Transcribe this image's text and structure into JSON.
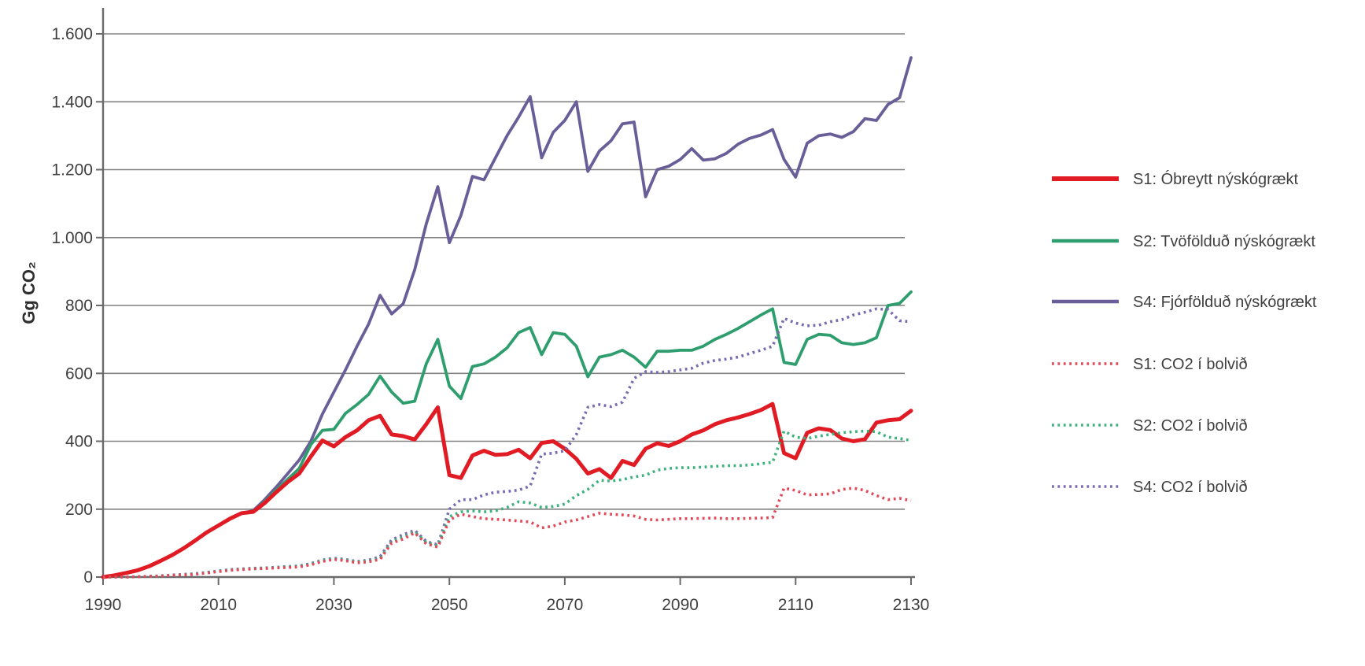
{
  "chart_data": {
    "type": "line",
    "title": "",
    "xlabel": "",
    "ylabel": "Gg CO₂",
    "ylim": [
      0,
      1600
    ],
    "xlim": [
      1990,
      2130
    ],
    "grid": "horizontal",
    "legend_position": "right",
    "yticks": [
      {
        "value": 0,
        "label": "0"
      },
      {
        "value": 200,
        "label": "200"
      },
      {
        "value": 400,
        "label": "400"
      },
      {
        "value": 600,
        "label": "600"
      },
      {
        "value": 800,
        "label": "800"
      },
      {
        "value": 1000,
        "label": "1.000"
      },
      {
        "value": 1200,
        "label": "1.200"
      },
      {
        "value": 1400,
        "label": "1.400"
      },
      {
        "value": 1600,
        "label": "1.600"
      }
    ],
    "xticks": [
      {
        "value": 1990,
        "label": "1990"
      },
      {
        "value": 2010,
        "label": "2010"
      },
      {
        "value": 2030,
        "label": "2030"
      },
      {
        "value": 2050,
        "label": "2050"
      },
      {
        "value": 2070,
        "label": "2070"
      },
      {
        "value": 2090,
        "label": "2090"
      },
      {
        "value": 2110,
        "label": "2110"
      },
      {
        "value": 2130,
        "label": "2130"
      }
    ],
    "x": [
      1990,
      1992,
      1994,
      1996,
      1998,
      2000,
      2002,
      2004,
      2006,
      2008,
      2010,
      2012,
      2014,
      2016,
      2018,
      2020,
      2022,
      2024,
      2026,
      2028,
      2030,
      2032,
      2034,
      2036,
      2038,
      2040,
      2042,
      2044,
      2046,
      2048,
      2050,
      2052,
      2054,
      2056,
      2058,
      2060,
      2062,
      2064,
      2066,
      2068,
      2070,
      2072,
      2074,
      2076,
      2078,
      2080,
      2082,
      2084,
      2086,
      2088,
      2090,
      2092,
      2094,
      2096,
      2098,
      2100,
      2102,
      2104,
      2106,
      2108,
      2110,
      2112,
      2114,
      2116,
      2118,
      2120,
      2122,
      2124,
      2126,
      2128,
      2130
    ],
    "series": [
      {
        "id": "s1-solid",
        "label": "S1: Óbreytt nýskógrækt",
        "color": "#e01b24",
        "style": "solid",
        "width": 5,
        "values": [
          0,
          5,
          12,
          20,
          32,
          48,
          65,
          85,
          108,
          132,
          152,
          172,
          188,
          192,
          218,
          250,
          280,
          305,
          355,
          402,
          385,
          412,
          432,
          462,
          475,
          420,
          415,
          405,
          450,
          500,
          300,
          292,
          358,
          372,
          360,
          362,
          375,
          350,
          395,
          400,
          378,
          348,
          305,
          318,
          292,
          342,
          330,
          378,
          394,
          386,
          400,
          420,
          432,
          450,
          462,
          470,
          480,
          492,
          510,
          365,
          350,
          425,
          438,
          433,
          408,
          400,
          406,
          455,
          462,
          465,
          490
        ]
      },
      {
        "id": "s2-solid",
        "label": "S2: Tvöfölduð nýskógrækt",
        "color": "#2f9e6e",
        "style": "solid",
        "width": 3.8,
        "values": [
          0,
          5,
          12,
          20,
          32,
          48,
          65,
          85,
          108,
          132,
          152,
          172,
          188,
          193,
          222,
          256,
          288,
          320,
          390,
          432,
          435,
          482,
          508,
          538,
          592,
          545,
          512,
          518,
          628,
          700,
          562,
          526,
          620,
          628,
          648,
          675,
          720,
          735,
          655,
          720,
          715,
          680,
          590,
          648,
          655,
          668,
          648,
          618,
          665,
          665,
          668,
          668,
          680,
          700,
          715,
          732,
          752,
          772,
          790,
          632,
          626,
          700,
          715,
          712,
          690,
          685,
          690,
          705,
          800,
          806,
          840
        ]
      },
      {
        "id": "s4-solid",
        "label": "S4: Fjórfölduð nýskógrækt",
        "color": "#6a5e99",
        "style": "solid",
        "width": 3.8,
        "values": [
          0,
          5,
          12,
          20,
          32,
          48,
          65,
          85,
          108,
          132,
          152,
          172,
          188,
          195,
          228,
          265,
          305,
          345,
          400,
          480,
          545,
          610,
          680,
          745,
          830,
          775,
          805,
          905,
          1040,
          1150,
          985,
          1065,
          1180,
          1170,
          1235,
          1300,
          1355,
          1415,
          1235,
          1310,
          1345,
          1400,
          1195,
          1255,
          1285,
          1335,
          1340,
          1120,
          1200,
          1210,
          1230,
          1262,
          1228,
          1232,
          1248,
          1275,
          1292,
          1302,
          1318,
          1230,
          1178,
          1278,
          1300,
          1305,
          1295,
          1312,
          1350,
          1345,
          1392,
          1412,
          1530
        ]
      },
      {
        "id": "s1-dotted",
        "label": "S1: CO2 í bolvið",
        "color": "#e4495a",
        "style": "dotted",
        "width": 3.6,
        "values": [
          0,
          0,
          0,
          1,
          2,
          3,
          5,
          6,
          8,
          12,
          16,
          20,
          22,
          24,
          25,
          27,
          28,
          30,
          36,
          46,
          52,
          48,
          42,
          45,
          52,
          100,
          112,
          130,
          98,
          88,
          168,
          185,
          178,
          172,
          170,
          168,
          165,
          162,
          145,
          150,
          162,
          168,
          178,
          188,
          185,
          183,
          180,
          170,
          168,
          170,
          172,
          172,
          173,
          174,
          172,
          172,
          173,
          174,
          175,
          262,
          255,
          242,
          243,
          245,
          258,
          262,
          255,
          240,
          228,
          232,
          225
        ]
      },
      {
        "id": "s2-dotted",
        "label": "S2: CO2 í bolvið",
        "color": "#3cb27d",
        "style": "dotted",
        "width": 3.6,
        "values": [
          0,
          0,
          0,
          1,
          2,
          3,
          5,
          7,
          9,
          13,
          17,
          21,
          23,
          25,
          26,
          28,
          30,
          32,
          38,
          48,
          54,
          50,
          44,
          47,
          55,
          105,
          118,
          133,
          102,
          92,
          178,
          192,
          195,
          192,
          195,
          205,
          222,
          218,
          205,
          208,
          215,
          240,
          258,
          285,
          283,
          287,
          295,
          300,
          315,
          320,
          322,
          322,
          324,
          326,
          328,
          328,
          330,
          334,
          338,
          430,
          412,
          408,
          415,
          420,
          425,
          428,
          430,
          428,
          412,
          408,
          402
        ]
      },
      {
        "id": "s4-dotted",
        "label": "S4: CO2 í bolvið",
        "color": "#7a6ab0",
        "style": "dotted",
        "width": 3.6,
        "values": [
          0,
          0,
          0,
          1,
          2,
          4,
          6,
          8,
          10,
          14,
          18,
          22,
          24,
          26,
          27,
          29,
          31,
          33,
          40,
          50,
          56,
          52,
          46,
          50,
          60,
          110,
          125,
          138,
          105,
          95,
          200,
          228,
          228,
          242,
          250,
          252,
          256,
          268,
          362,
          365,
          372,
          420,
          500,
          508,
          502,
          515,
          585,
          605,
          603,
          605,
          610,
          615,
          630,
          638,
          642,
          648,
          658,
          668,
          680,
          762,
          748,
          740,
          742,
          752,
          758,
          772,
          780,
          790,
          788,
          755,
          752
        ]
      }
    ],
    "legend_order": [
      "s1-solid",
      "s2-solid",
      "s4-solid",
      "s1-dotted",
      "s2-dotted",
      "s4-dotted"
    ]
  },
  "colors": {
    "gridline": "#808080",
    "axis": "#6a6a6a",
    "tick_text": "#3f3f3f"
  }
}
